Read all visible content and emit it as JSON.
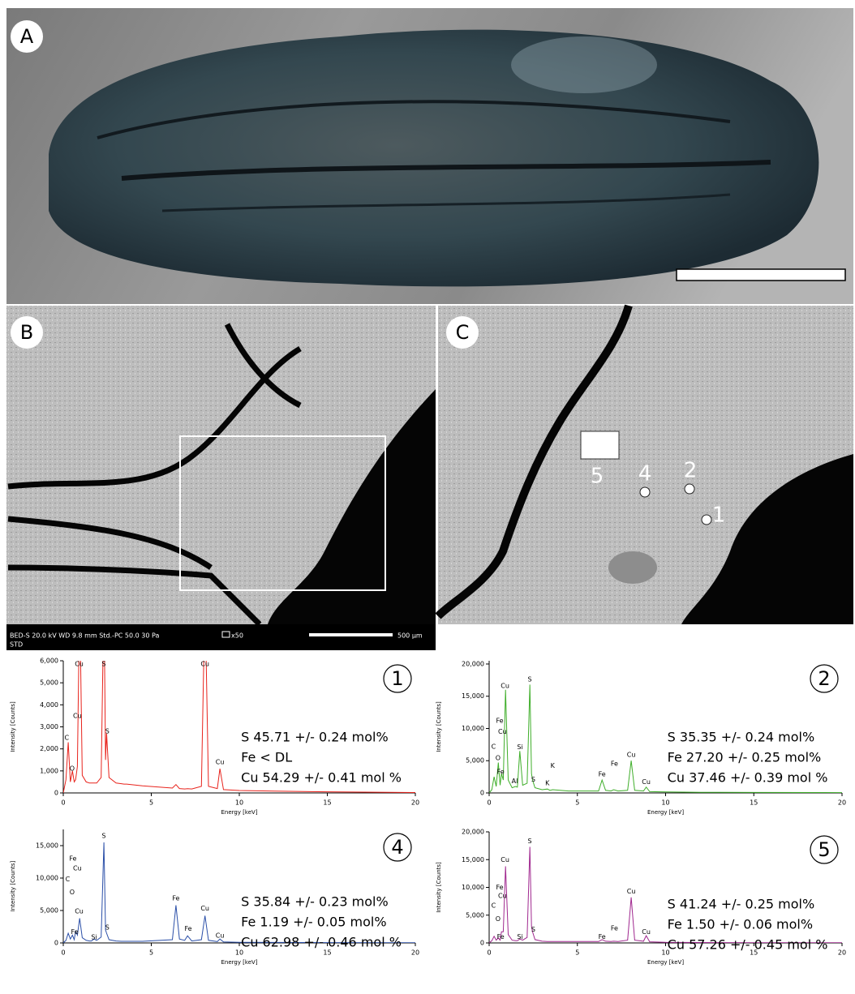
{
  "figure": {
    "panel_labels": [
      "A",
      "B",
      "C"
    ],
    "sem_info": "BED-S  20.0 kV    WD 9.8 mm      Std.-PC 50.0      30 Pa",
    "sem_mag": "x50",
    "sem_info2": "STD",
    "scale_label": "500 µm",
    "points": [
      "5",
      "4",
      "2",
      "1"
    ]
  },
  "chart_data": [
    {
      "type": "line",
      "panel": "1",
      "color": "#e8231c",
      "xlabel": "Energy [keV]",
      "ylabel": "Intensity [Counts]",
      "xlim": [
        0,
        20
      ],
      "xticks": [
        0,
        5,
        10,
        15,
        20
      ],
      "ylim": [
        0,
        6000
      ],
      "yticks": [
        0,
        {
          "value": 1000,
          "label": "1,000"
        },
        {
          "value": 2000,
          "label": "2,000"
        },
        {
          "value": 3000,
          "label": "3,000"
        },
        {
          "value": 4000,
          "label": "4,000"
        },
        {
          "value": 5000,
          "label": "5,000"
        },
        {
          "value": 6000,
          "label": "6,000"
        }
      ],
      "x": [
        0,
        0.15,
        0.28,
        0.4,
        0.52,
        0.62,
        0.7,
        0.8,
        0.93,
        1.08,
        1.3,
        1.49,
        1.6,
        1.74,
        1.9,
        2.15,
        2.31,
        2.4,
        2.46,
        2.6,
        3.0,
        3.3,
        3.45,
        3.6,
        4.5,
        6.2,
        6.4,
        6.6,
        6.9,
        7.06,
        7.3,
        7.85,
        8.05,
        8.25,
        8.75,
        8.9,
        9.1,
        10,
        12,
        15,
        20
      ],
      "values": [
        0,
        600,
        2300,
        500,
        1000,
        500,
        600,
        1200,
        9000,
        800,
        500,
        450,
        450,
        450,
        450,
        700,
        9000,
        1500,
        2700,
        700,
        450,
        420,
        400,
        400,
        320,
        220,
        380,
        200,
        180,
        190,
        180,
        300,
        9000,
        300,
        200,
        1100,
        150,
        110,
        80,
        50,
        20
      ],
      "annotations": [
        {
          "text": "C",
          "x": 0.2,
          "y": 2500
        },
        {
          "text": "O",
          "x": 0.5,
          "y": 1100
        },
        {
          "text": "Cu",
          "x": 0.8,
          "y": 3500
        },
        {
          "text": "Cu",
          "x": 0.9,
          "y": 5850
        },
        {
          "text": "S",
          "x": 2.3,
          "y": 5850
        },
        {
          "text": "S",
          "x": 2.5,
          "y": 2800
        },
        {
          "text": "Cu",
          "x": 8.05,
          "y": 5850
        },
        {
          "text": "Cu",
          "x": 8.9,
          "y": 1400
        }
      ],
      "composition": [
        "S  45.71 +/- 0.24 mol%",
        "Fe < DL",
        "Cu 54.29 +/- 0.41 mol %"
      ]
    },
    {
      "type": "line",
      "panel": "2",
      "color": "#3fae2a",
      "xlabel": "Energy [keV]",
      "ylabel": "Intensity [Counts]",
      "xlim": [
        0,
        20
      ],
      "xticks": [
        0,
        5,
        10,
        15,
        20
      ],
      "ylim": [
        0,
        20500
      ],
      "yticks": [
        0,
        {
          "value": 5000,
          "label": "5,000"
        },
        {
          "value": 10000,
          "label": "10,000"
        },
        {
          "value": 15000,
          "label": "15,000"
        },
        {
          "value": 20000,
          "label": "20,000"
        }
      ],
      "x": [
        0,
        0.15,
        0.28,
        0.4,
        0.52,
        0.62,
        0.7,
        0.8,
        0.93,
        1.08,
        1.3,
        1.49,
        1.6,
        1.74,
        1.9,
        2.15,
        2.31,
        2.4,
        2.46,
        2.6,
        3.0,
        3.3,
        3.45,
        3.6,
        4.5,
        6.2,
        6.4,
        6.6,
        6.9,
        7.06,
        7.3,
        7.85,
        8.05,
        8.25,
        8.75,
        8.9,
        9.1,
        10,
        12,
        15,
        20
      ],
      "values": [
        0,
        500,
        2500,
        1000,
        4700,
        1200,
        3000,
        2000,
        16000,
        2000,
        800,
        1000,
        900,
        6500,
        1200,
        1500,
        16800,
        3000,
        2000,
        800,
        500,
        600,
        400,
        500,
        300,
        300,
        2000,
        400,
        300,
        500,
        300,
        400,
        5000,
        400,
        300,
        900,
        200,
        150,
        100,
        80,
        50
      ],
      "annotations": [
        {
          "text": "Cu",
          "x": 0.9,
          "y": 16600
        },
        {
          "text": "Fe",
          "x": 0.6,
          "y": 11200
        },
        {
          "text": "Cu",
          "x": 0.75,
          "y": 9500
        },
        {
          "text": "C",
          "x": 0.25,
          "y": 7200
        },
        {
          "text": "O",
          "x": 0.5,
          "y": 5400
        },
        {
          "text": "Fe",
          "x": 0.65,
          "y": 3300
        },
        {
          "text": "Al",
          "x": 1.45,
          "y": 1800
        },
        {
          "text": "Si",
          "x": 1.75,
          "y": 7100
        },
        {
          "text": "S",
          "x": 2.3,
          "y": 17600
        },
        {
          "text": "S",
          "x": 2.5,
          "y": 2100
        },
        {
          "text": "K",
          "x": 3.6,
          "y": 4200
        },
        {
          "text": "K",
          "x": 3.3,
          "y": 1500
        },
        {
          "text": "Fe",
          "x": 6.4,
          "y": 2900
        },
        {
          "text": "Fe",
          "x": 7.1,
          "y": 4500
        },
        {
          "text": "Cu",
          "x": 8.05,
          "y": 5900
        },
        {
          "text": "Cu",
          "x": 8.9,
          "y": 1700
        }
      ],
      "composition": [
        "S 35.35 +/- 0.24 mol%",
        "Fe 27.20 +/- 0.25 mol%",
        "Cu  37.46 +/- 0.39 mol %"
      ]
    },
    {
      "type": "line",
      "panel": "4",
      "color": "#2b4fa8",
      "xlabel": "Energy [keV]",
      "ylabel": "Intensity [Counts]",
      "xlim": [
        0,
        20
      ],
      "xticks": [
        0,
        5,
        10,
        15,
        20
      ],
      "ylim": [
        0,
        17500
      ],
      "yticks": [
        0,
        {
          "value": 5000,
          "label": "5,000"
        },
        {
          "value": 10000,
          "label": "10,000"
        },
        {
          "value": 15000,
          "label": "15,000"
        }
      ],
      "x": [
        0,
        0.15,
        0.28,
        0.4,
        0.52,
        0.62,
        0.7,
        0.8,
        0.93,
        1.08,
        1.3,
        1.49,
        1.6,
        1.74,
        1.9,
        2.15,
        2.31,
        2.4,
        2.46,
        2.6,
        3.0,
        3.3,
        3.45,
        3.6,
        4.5,
        6.2,
        6.4,
        6.6,
        6.9,
        7.06,
        7.3,
        7.85,
        8.05,
        8.25,
        8.75,
        8.9,
        9.1,
        10,
        12,
        15,
        20
      ],
      "values": [
        0,
        400,
        1500,
        600,
        1200,
        500,
        1800,
        1200,
        3800,
        800,
        400,
        300,
        300,
        600,
        400,
        900,
        15500,
        2000,
        1500,
        500,
        300,
        250,
        250,
        250,
        250,
        500,
        5800,
        600,
        400,
        1100,
        300,
        500,
        4200,
        400,
        200,
        600,
        150,
        100,
        80,
        50,
        30
      ],
      "annotations": [
        {
          "text": "Fe",
          "x": 0.55,
          "y": 13000
        },
        {
          "text": "Cu",
          "x": 0.8,
          "y": 11500
        },
        {
          "text": "C",
          "x": 0.25,
          "y": 9800
        },
        {
          "text": "O",
          "x": 0.5,
          "y": 7800
        },
        {
          "text": "Fe",
          "x": 0.65,
          "y": 1700
        },
        {
          "text": "Cu",
          "x": 0.9,
          "y": 4900
        },
        {
          "text": "Si",
          "x": 1.75,
          "y": 900
        },
        {
          "text": "S",
          "x": 2.3,
          "y": 16500
        },
        {
          "text": "S",
          "x": 2.5,
          "y": 2400
        },
        {
          "text": "Fe",
          "x": 6.4,
          "y": 6900
        },
        {
          "text": "Fe",
          "x": 7.1,
          "y": 2200
        },
        {
          "text": "Cu",
          "x": 8.05,
          "y": 5300
        },
        {
          "text": "Cu",
          "x": 8.9,
          "y": 1100
        }
      ],
      "composition": [
        "S 35.84 +/- 0.23 mol%",
        "Fe 1.19 +/- 0.05 mol%",
        "Cu  62.98 +/-  0.46 mol %"
      ]
    },
    {
      "type": "line",
      "panel": "5",
      "color": "#a0288f",
      "xlabel": "Energy [keV]",
      "ylabel": "Intensity [Counts]",
      "xlim": [
        0,
        20
      ],
      "xticks": [
        0,
        5,
        10,
        15,
        20
      ],
      "ylim": [
        0,
        20000
      ],
      "yticks": [
        0,
        {
          "value": 5000,
          "label": "5,000"
        },
        {
          "value": 10000,
          "label": "10,000"
        },
        {
          "value": 15000,
          "label": "15,000"
        },
        {
          "value": 20000,
          "label": "20,000"
        }
      ],
      "x": [
        0,
        0.15,
        0.28,
        0.4,
        0.52,
        0.62,
        0.7,
        0.8,
        0.93,
        1.08,
        1.3,
        1.49,
        1.6,
        1.74,
        1.9,
        2.15,
        2.31,
        2.4,
        2.46,
        2.6,
        3.0,
        3.3,
        3.45,
        3.6,
        4.5,
        6.2,
        6.4,
        6.6,
        6.9,
        7.06,
        7.3,
        7.85,
        8.05,
        8.25,
        8.75,
        8.9,
        9.1,
        10,
        12,
        15,
        20
      ],
      "values": [
        0,
        400,
        1200,
        500,
        900,
        500,
        2000,
        2000,
        13800,
        1500,
        500,
        400,
        400,
        700,
        500,
        1000,
        17300,
        3000,
        2000,
        600,
        300,
        250,
        250,
        250,
        250,
        250,
        600,
        300,
        250,
        300,
        250,
        500,
        8200,
        500,
        300,
        1300,
        200,
        120,
        80,
        50,
        30
      ],
      "annotations": [
        {
          "text": "Cu",
          "x": 0.9,
          "y": 15000
        },
        {
          "text": "Fe",
          "x": 0.6,
          "y": 10000
        },
        {
          "text": "Cu",
          "x": 0.75,
          "y": 8500
        },
        {
          "text": "C",
          "x": 0.25,
          "y": 6700
        },
        {
          "text": "O",
          "x": 0.5,
          "y": 4300
        },
        {
          "text": "Fe",
          "x": 0.65,
          "y": 1100
        },
        {
          "text": "Si",
          "x": 1.75,
          "y": 1100
        },
        {
          "text": "S",
          "x": 2.3,
          "y": 18300
        },
        {
          "text": "S",
          "x": 2.5,
          "y": 2400
        },
        {
          "text": "Fe",
          "x": 6.4,
          "y": 1100
        },
        {
          "text": "Fe",
          "x": 7.1,
          "y": 2600
        },
        {
          "text": "Cu",
          "x": 8.05,
          "y": 9300
        },
        {
          "text": "Cu",
          "x": 8.9,
          "y": 2000
        }
      ],
      "composition": [
        "S 41.24 +/- 0.25 mol%",
        "Fe 1.50 +/- 0.06 mol%",
        "Cu  57.26 +/- 0.45 mol %"
      ]
    }
  ]
}
